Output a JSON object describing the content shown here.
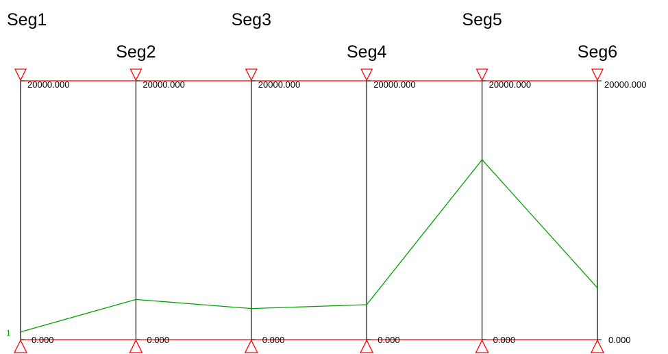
{
  "chart_data": {
    "type": "parallel_coordinates",
    "axes": [
      {
        "name": "Seg1",
        "max_label": "20000.000",
        "min_label": "0.000",
        "range": [
          0,
          20000
        ]
      },
      {
        "name": "Seg2",
        "max_label": "20000.000",
        "min_label": "0.000",
        "range": [
          0,
          20000
        ]
      },
      {
        "name": "Seg3",
        "max_label": "20000.000",
        "min_label": "0.000",
        "range": [
          0,
          20000
        ]
      },
      {
        "name": "Seg4",
        "max_label": "20000.000",
        "min_label": "0.000",
        "range": [
          0,
          20000
        ]
      },
      {
        "name": "Seg5",
        "max_label": "20000.000",
        "min_label": "0.000",
        "range": [
          0,
          20000
        ]
      },
      {
        "name": "Seg6",
        "max_label": "20000.000",
        "min_label": "0.000",
        "range": [
          0,
          20000
        ]
      }
    ],
    "series": [
      {
        "name": "1",
        "values": [
          600,
          3100,
          2400,
          2700,
          13900,
          4000
        ]
      }
    ],
    "colors": {
      "axis_line": "#000000",
      "range_marker": "#ff0000",
      "series": "#00a000"
    }
  }
}
